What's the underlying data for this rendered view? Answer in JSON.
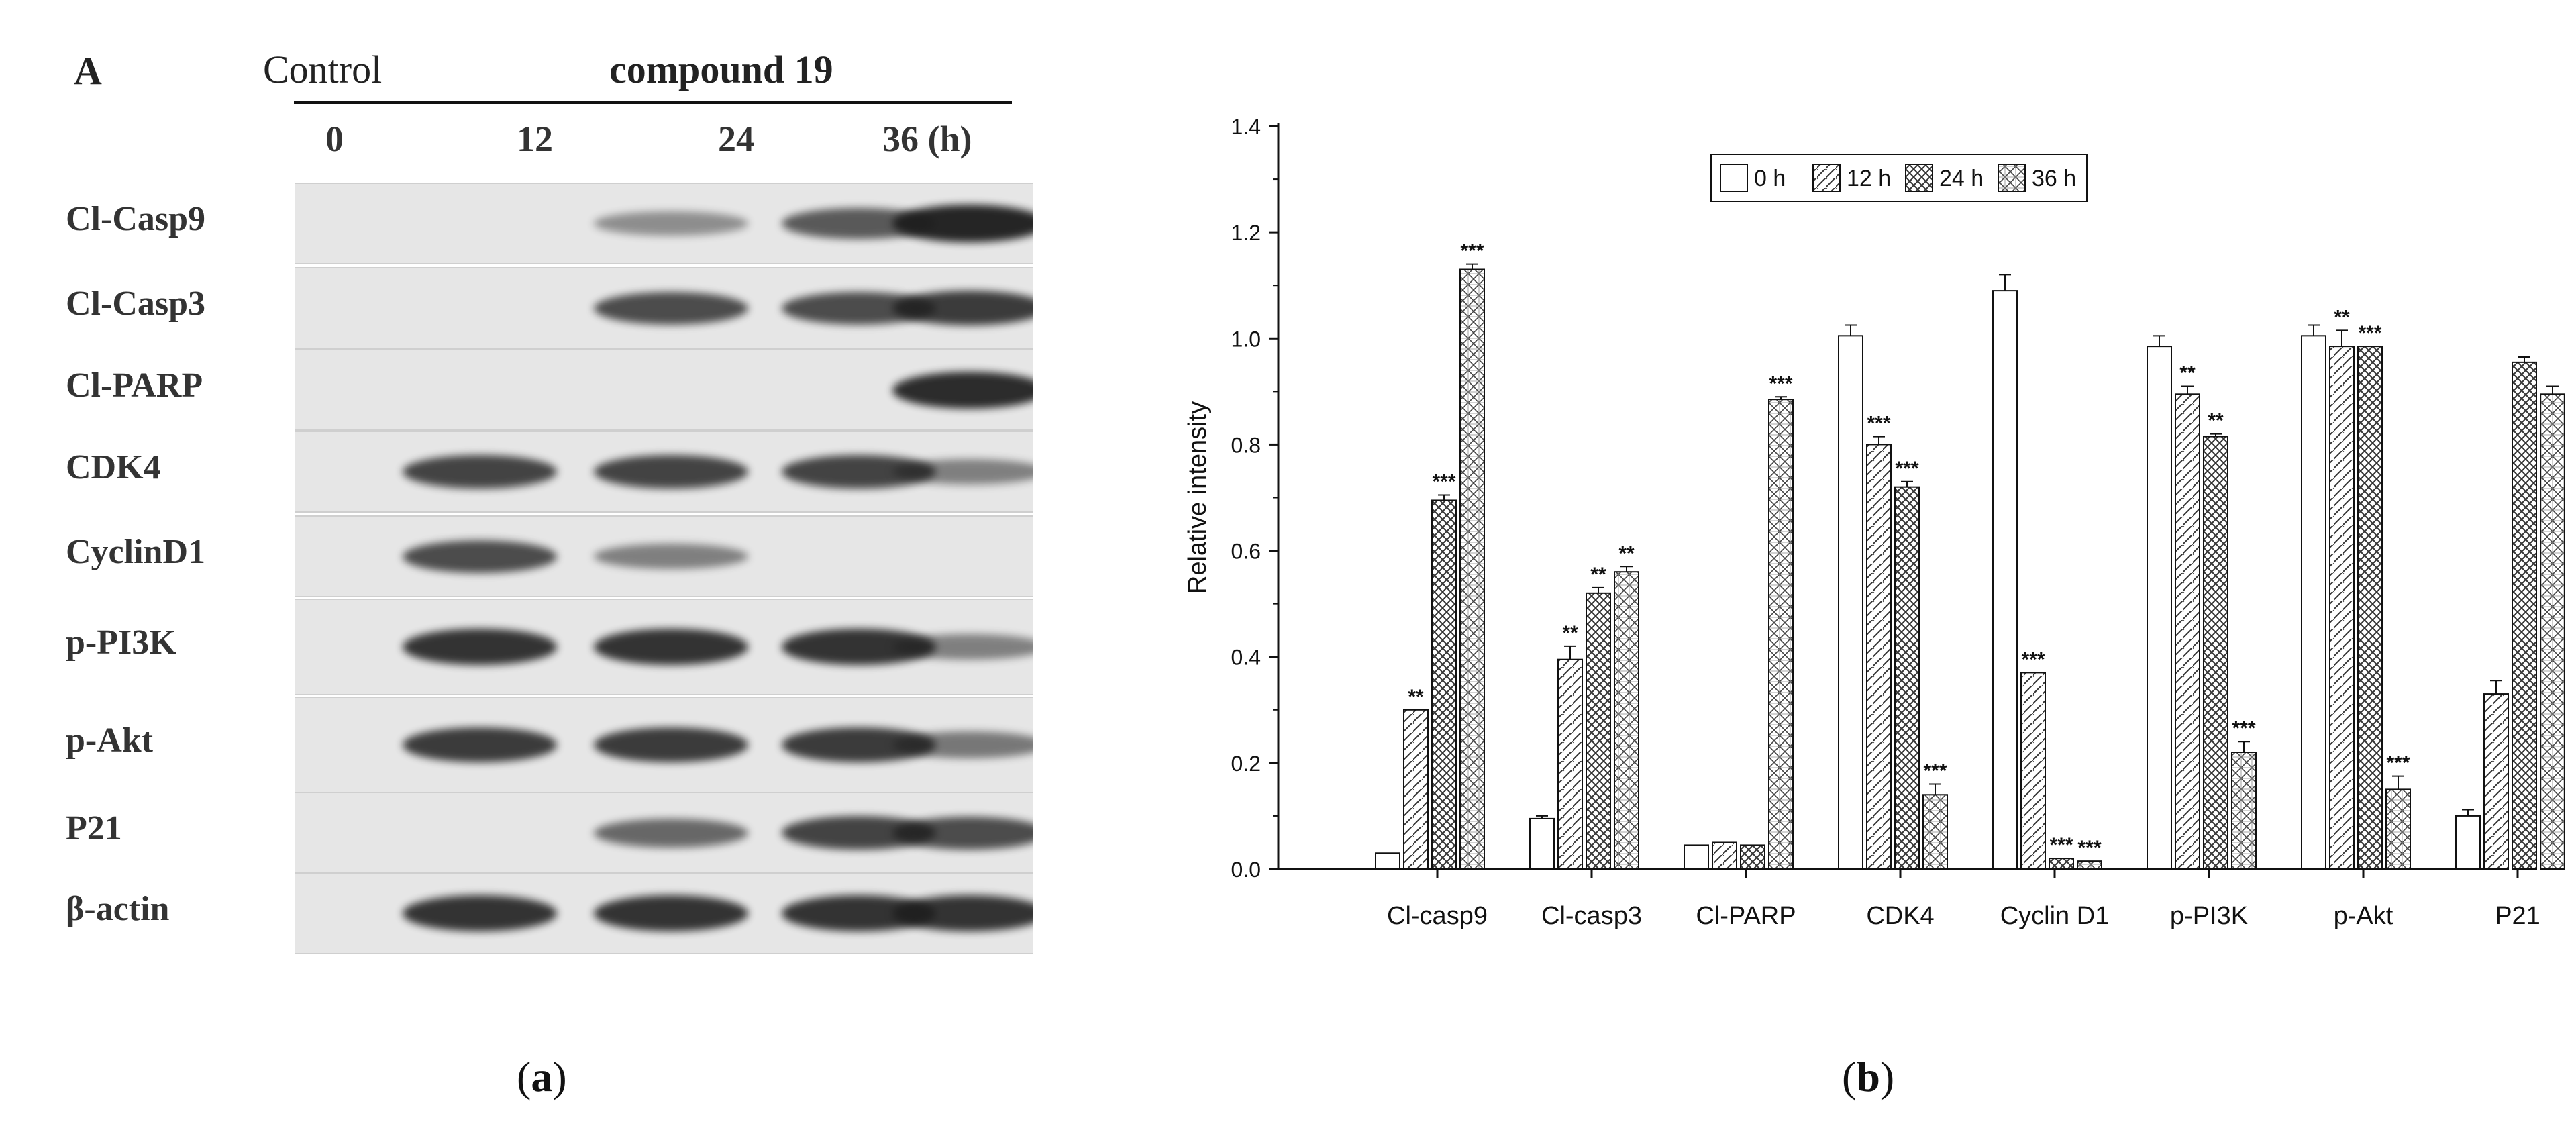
{
  "panel_a": {
    "letter": "A",
    "control_label": "Control",
    "compound_label": "compound",
    "compound_number": "19",
    "timepoints": [
      "0",
      "12",
      "24",
      "36 (h)"
    ],
    "rows": [
      {
        "label": "Cl-Casp9",
        "intensity": [
          0.0,
          0.25,
          0.6,
          0.95
        ]
      },
      {
        "label": "Cl-Casp3",
        "intensity": [
          0.0,
          0.7,
          0.7,
          0.8
        ]
      },
      {
        "label": "Cl-PARP",
        "intensity": [
          0.0,
          0.0,
          0.0,
          0.9
        ]
      },
      {
        "label": "CDK4",
        "intensity": [
          0.75,
          0.75,
          0.75,
          0.35
        ]
      },
      {
        "label": "CyclinD1",
        "intensity": [
          0.7,
          0.35,
          0.0,
          0.0
        ]
      },
      {
        "label": "p-PI3K",
        "intensity": [
          0.85,
          0.85,
          0.85,
          0.35
        ]
      },
      {
        "label": "p-Akt",
        "intensity": [
          0.8,
          0.8,
          0.8,
          0.4
        ]
      },
      {
        "label": "P21",
        "intensity": [
          0.0,
          0.5,
          0.75,
          0.7
        ]
      },
      {
        "label": "β-actin",
        "intensity": [
          0.85,
          0.85,
          0.85,
          0.85
        ]
      }
    ]
  },
  "chart_data": {
    "type": "bar",
    "ylabel": "Relative intensity",
    "xlabel": "",
    "ylim": [
      0.0,
      1.4
    ],
    "yticks": [
      "0.0",
      "0.2",
      "0.4",
      "0.6",
      "0.8",
      "1.0",
      "1.2",
      "1.4"
    ],
    "categories": [
      "Cl-casp9",
      "Cl-casp3",
      "Cl-PARP",
      "CDK4",
      "Cyclin D1",
      "p-PI3K",
      "p-Akt",
      "P21"
    ],
    "legend_position": "top-center",
    "series": [
      {
        "name": "0 h",
        "pattern": "blank",
        "values": [
          0.03,
          0.095,
          0.045,
          1.005,
          1.09,
          0.985,
          1.005,
          0.1
        ],
        "errors": [
          0.0,
          0.005,
          0.0,
          0.02,
          0.03,
          0.02,
          0.02,
          0.012
        ],
        "sig": [
          "",
          "",
          "",
          "",
          "",
          "",
          "",
          ""
        ]
      },
      {
        "name": "12 h",
        "pattern": "diagonal",
        "values": [
          0.3,
          0.395,
          0.05,
          0.8,
          0.37,
          0.895,
          0.985,
          0.33
        ],
        "errors": [
          0.0,
          0.025,
          0.0,
          0.015,
          0.0,
          0.015,
          0.03,
          0.025
        ],
        "sig": [
          "**",
          "**",
          "",
          "***",
          "***",
          "**",
          "**",
          ""
        ]
      },
      {
        "name": "24 h",
        "pattern": "crosshatch",
        "values": [
          0.695,
          0.52,
          0.045,
          0.72,
          0.02,
          0.815,
          0.985,
          0.955
        ],
        "errors": [
          0.01,
          0.01,
          0.0,
          0.01,
          0.0,
          0.005,
          0.0,
          0.01
        ],
        "sig": [
          "***",
          "**",
          "",
          "***",
          "***",
          "**",
          "***",
          ""
        ]
      },
      {
        "name": "36 h",
        "pattern": "densehatch",
        "values": [
          1.13,
          0.56,
          0.885,
          0.14,
          0.015,
          0.22,
          0.15,
          0.895
        ],
        "errors": [
          0.01,
          0.01,
          0.005,
          0.02,
          0.0,
          0.02,
          0.025,
          0.015
        ],
        "sig": [
          "***",
          "**",
          "***",
          "***",
          "***",
          "***",
          "***",
          ""
        ]
      }
    ]
  },
  "captions": {
    "a_open": "(",
    "a_letter": "a",
    "a_close": ")",
    "b_open": "(",
    "b_letter": "b",
    "b_close": ")"
  }
}
